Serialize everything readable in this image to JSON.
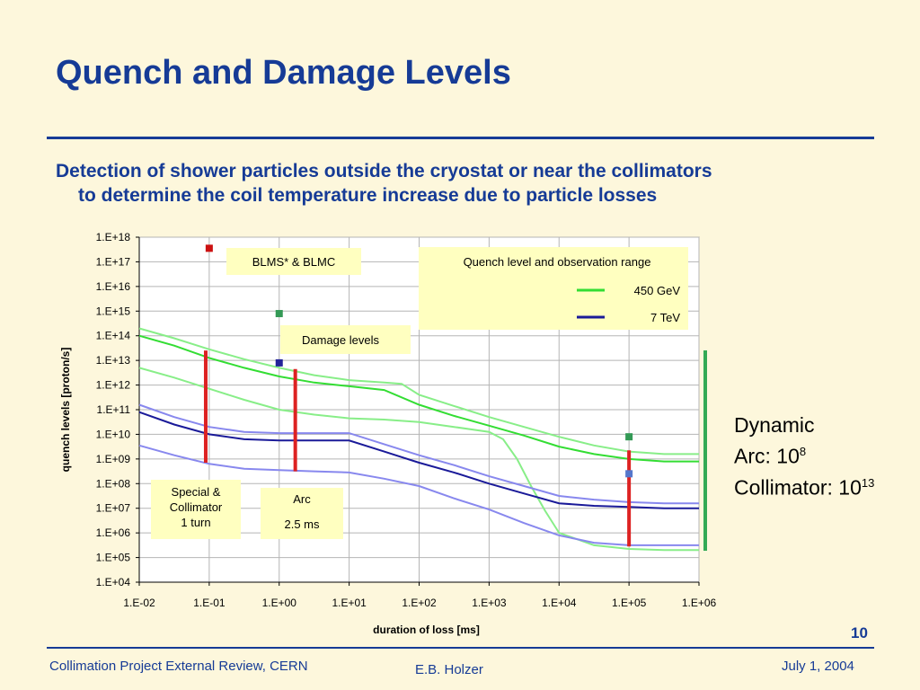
{
  "slide": {
    "title": "Quench and Damage Levels",
    "subtitle_line1": "Detection of shower particles outside the cryostat or near the collimators",
    "subtitle_line2": "to determine the coil temperature increase due to particle losses",
    "dynamic_title": "Dynamic",
    "dynamic_arc": "Arc: 10",
    "dynamic_arc_exp": "8",
    "dynamic_coll": "Collimator: 10",
    "dynamic_coll_exp": "13",
    "page_number": "10",
    "footer_left": "Collimation Project External Review, CERN",
    "footer_center": "E.B. Holzer",
    "footer_right": "July 1, 2004"
  },
  "chart_data": {
    "type": "line",
    "xscale": "log",
    "yscale": "log",
    "xlabel": "duration of loss [ms]",
    "ylabel": "quench levels [proton/s]",
    "x_ticks": [
      "1.E-02",
      "1.E-01",
      "1.E+00",
      "1.E+01",
      "1.E+02",
      "1.E+03",
      "1.E+04",
      "1.E+05",
      "1.E+06"
    ],
    "y_ticks": [
      "1.E+04",
      "1.E+05",
      "1.E+06",
      "1.E+07",
      "1.E+08",
      "1.E+09",
      "1.E+10",
      "1.E+11",
      "1.E+12",
      "1.E+13",
      "1.E+14",
      "1.E+15",
      "1.E+16",
      "1.E+17",
      "1.E+18"
    ],
    "xlim": [
      -2,
      6
    ],
    "ylim": [
      4,
      18
    ],
    "grid": true,
    "colors": {
      "green_dark": "#33dd33",
      "green_light": "#88ee88",
      "blue_dark": "#1a1a99",
      "blue_light": "#8888ee",
      "red": "#dd2222",
      "box": "#ffffc0",
      "dyn_bar": "#33aa55"
    },
    "series": [
      {
        "name": "450 GeV",
        "color": "#33dd33",
        "width": 2,
        "x": [
          -2,
          -1.5,
          -1,
          -0.5,
          0,
          0.5,
          1,
          1.5,
          2,
          2.5,
          3,
          3.5,
          4,
          4.5,
          5,
          5.5,
          6
        ],
        "y": [
          14.0,
          13.6,
          13.1,
          12.7,
          12.35,
          12.1,
          11.95,
          11.8,
          11.2,
          10.75,
          10.35,
          9.95,
          9.5,
          9.2,
          9.0,
          8.9,
          8.9
        ]
      },
      {
        "name": "",
        "color": "#88ee88",
        "width": 2,
        "x": [
          -2,
          -1.5,
          -1,
          -0.5,
          0,
          0.5,
          1,
          1.5,
          1.75,
          2,
          2.5,
          3,
          3.5,
          4,
          4.5,
          5,
          5.5,
          6
        ],
        "y": [
          14.3,
          13.9,
          13.45,
          13.05,
          12.7,
          12.4,
          12.2,
          12.1,
          12.05,
          11.6,
          11.15,
          10.7,
          10.3,
          9.9,
          9.55,
          9.3,
          9.2,
          9.2
        ]
      },
      {
        "name": "",
        "color": "#88ee88",
        "width": 2,
        "x": [
          -2,
          -1.5,
          -1,
          -0.5,
          0,
          0.5,
          1,
          1.5,
          2,
          2.5,
          3,
          3.2,
          3.4,
          3.6,
          3.8,
          4,
          4.5,
          5,
          5.5,
          6
        ],
        "y": [
          12.7,
          12.3,
          11.85,
          11.4,
          11.0,
          10.8,
          10.65,
          10.6,
          10.5,
          10.3,
          10.1,
          9.8,
          9.0,
          7.9,
          6.9,
          6.0,
          5.5,
          5.35,
          5.3,
          5.3
        ]
      },
      {
        "name": "7 TeV",
        "color": "#1a1a99",
        "width": 2,
        "x": [
          -2,
          -1.5,
          -1,
          -0.5,
          0,
          0.5,
          1,
          1.5,
          2,
          2.5,
          3,
          3.5,
          4,
          4.5,
          5,
          5.5,
          6
        ],
        "y": [
          10.9,
          10.4,
          10.0,
          9.8,
          9.75,
          9.75,
          9.75,
          9.3,
          8.85,
          8.45,
          8.0,
          7.6,
          7.2,
          7.1,
          7.05,
          7.0,
          7.0
        ]
      },
      {
        "name": "",
        "color": "#8888ee",
        "width": 2,
        "x": [
          -2,
          -1.5,
          -1,
          -0.5,
          0,
          0.5,
          1,
          1.5,
          2,
          2.5,
          3,
          3.5,
          4,
          4.5,
          5,
          5.5,
          6
        ],
        "y": [
          11.2,
          10.7,
          10.3,
          10.1,
          10.05,
          10.05,
          10.05,
          9.6,
          9.15,
          8.75,
          8.3,
          7.9,
          7.5,
          7.35,
          7.25,
          7.2,
          7.2
        ]
      },
      {
        "name": "",
        "color": "#8888ee",
        "width": 2,
        "x": [
          -2,
          -1.5,
          -1,
          -0.5,
          0,
          0.5,
          1,
          1.5,
          2,
          2.5,
          3,
          3.5,
          4,
          4.5,
          5,
          5.5,
          6
        ],
        "y": [
          9.55,
          9.15,
          8.8,
          8.6,
          8.55,
          8.5,
          8.45,
          8.2,
          7.9,
          7.4,
          6.95,
          6.4,
          5.9,
          5.6,
          5.5,
          5.5,
          5.5
        ]
      }
    ],
    "damage_points": [
      {
        "x": -1.0,
        "y": 17.55,
        "color": "#cc1111"
      },
      {
        "x": 0.0,
        "y": 14.9,
        "color": "#339955"
      },
      {
        "x": 0.0,
        "y": 12.9,
        "color": "#222299"
      },
      {
        "x": 5.0,
        "y": 9.9,
        "color": "#339955"
      },
      {
        "x": 5.0,
        "y": 8.4,
        "color": "#5577cc"
      }
    ],
    "ranges": [
      {
        "x": -1.05,
        "y1": 8.85,
        "y2": 13.4
      },
      {
        "x": 0.23,
        "y1": 8.5,
        "y2": 12.65
      },
      {
        "x": 5.0,
        "y1": 5.45,
        "y2": 9.35
      }
    ],
    "annotations": {
      "blms": "BLMS* & BLMC",
      "quench_legend": "Quench level and observation range",
      "damage": "Damage levels",
      "special": [
        "Special &",
        "Collimator",
        "1 turn"
      ],
      "arc": [
        "Arc",
        "",
        "2.5 ms"
      ]
    }
  }
}
